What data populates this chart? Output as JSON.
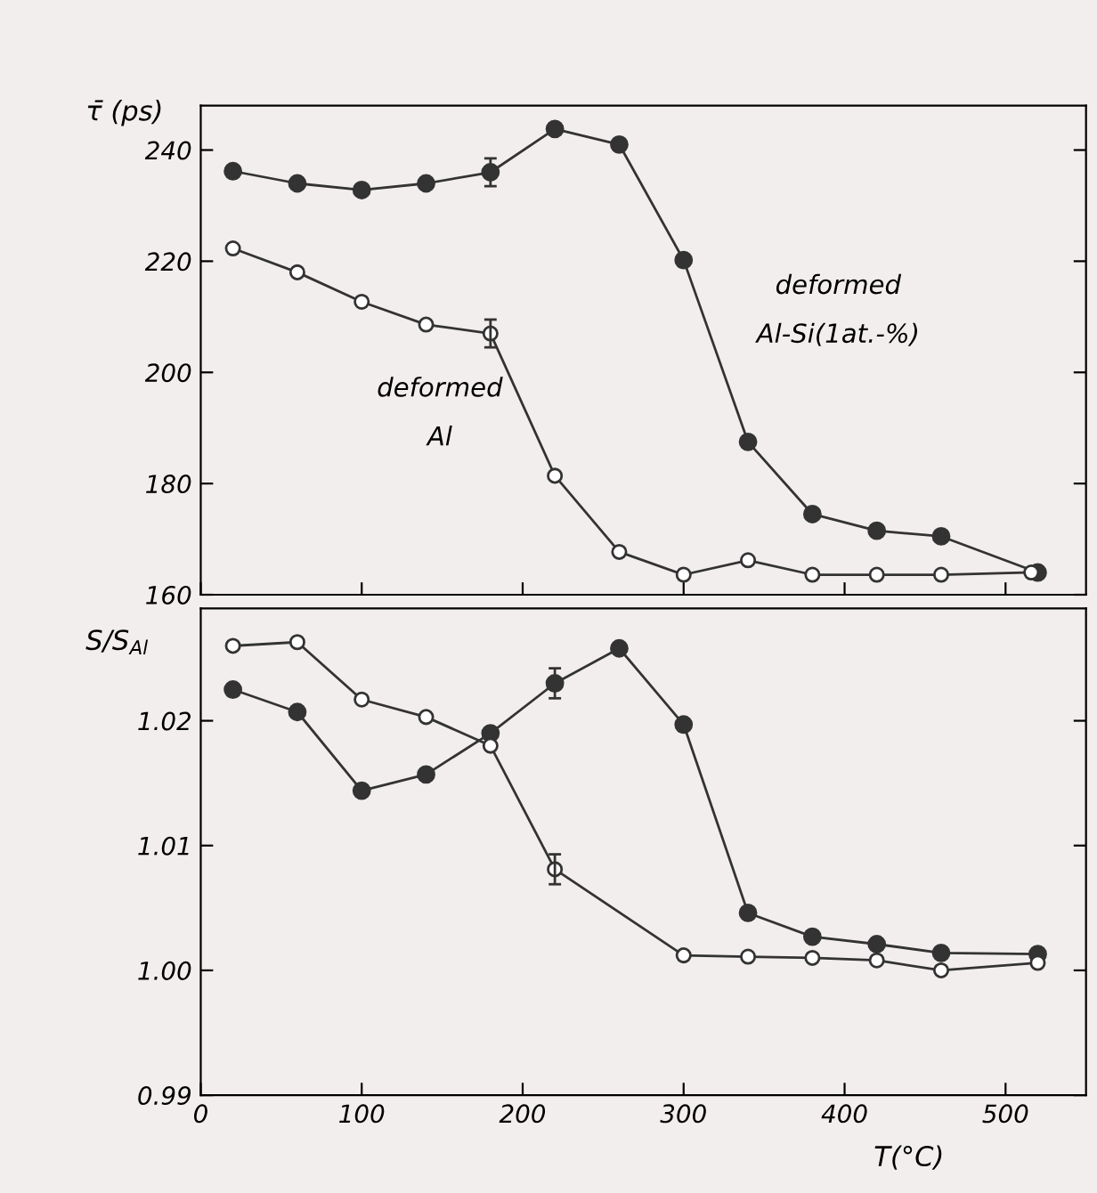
{
  "chart_data": [
    {
      "type": "line",
      "ylabel": "τ̄ (ps)",
      "x": [
        20,
        60,
        100,
        140,
        180,
        220,
        260,
        300,
        340,
        380,
        420,
        460,
        520
      ],
      "xlim": [
        0,
        550
      ],
      "xticks": [
        0,
        100,
        200,
        300,
        400,
        500
      ],
      "ylim": [
        160,
        248
      ],
      "yticks": [
        160,
        180,
        200,
        220,
        240
      ],
      "tick_labels": "y",
      "marker": "circle",
      "grid": false,
      "legend": false,
      "series": [
        {
          "name": "deformed Al-Si(1at.-%)",
          "color": "#333333",
          "values": [
            236.2,
            234,
            232.8,
            234,
            236,
            243.8,
            241,
            220.2,
            187.5,
            174.5,
            171.5,
            170.5,
            164
          ],
          "errors": [
            null,
            null,
            null,
            null,
            2.5,
            null,
            null,
            null,
            null,
            null,
            null,
            null,
            null
          ]
        },
        {
          "name": "deformed Al",
          "color": "#333333",
          "x": [
            20,
            60,
            100,
            140,
            180,
            220,
            260,
            300,
            340,
            380,
            420,
            460,
            516
          ],
          "values": [
            222.3,
            218,
            212.7,
            208.6,
            207,
            181.4,
            167.7,
            163.6,
            166.2,
            163.6,
            163.6,
            163.6,
            164
          ],
          "errors": [
            null,
            null,
            null,
            null,
            2.5,
            null,
            null,
            null,
            null,
            null,
            null,
            null,
            null
          ]
        }
      ]
    },
    {
      "type": "line",
      "xlabel": "T(°C)",
      "ylabel": "S/S$_{Al}$",
      "x": [
        20,
        60,
        100,
        140,
        180,
        220,
        260,
        300,
        340,
        380,
        420,
        460,
        520
      ],
      "xlim": [
        0,
        550
      ],
      "xticks": [
        0,
        100,
        200,
        300,
        400,
        500
      ],
      "ylim": [
        0.99,
        1.029
      ],
      "yticks": [
        {
          "value": 0.99,
          "label": "0.99"
        },
        {
          "value": 1.0,
          "label": "1.00"
        },
        {
          "value": 1.01,
          "label": "1.01"
        },
        {
          "value": 1.02,
          "label": "1.02"
        }
      ],
      "marker": "circle",
      "grid": false,
      "legend": false,
      "series": [
        {
          "color": "#333333",
          "values": [
            1.0225,
            1.0207,
            1.0144,
            1.0157,
            1.019,
            1.023,
            1.0258,
            1.0197,
            1.0046,
            1.0027,
            1.0021,
            1.0014,
            1.0013
          ],
          "errors": [
            null,
            null,
            null,
            null,
            null,
            0.0012,
            null,
            null,
            null,
            null,
            null,
            null,
            null
          ]
        },
        {
          "color": "#333333",
          "x": [
            20,
            60,
            100,
            140,
            180,
            220,
            300,
            340,
            380,
            420,
            460,
            520
          ],
          "values": [
            1.026,
            1.0263,
            1.0217,
            1.0203,
            1.018,
            1.0081,
            1.0012,
            1.0011,
            1.001,
            1.0008,
            1.0,
            1.0006
          ],
          "errors": [
            null,
            null,
            null,
            null,
            null,
            0.0012,
            null,
            null,
            null,
            null,
            null,
            null
          ]
        }
      ]
    }
  ]
}
